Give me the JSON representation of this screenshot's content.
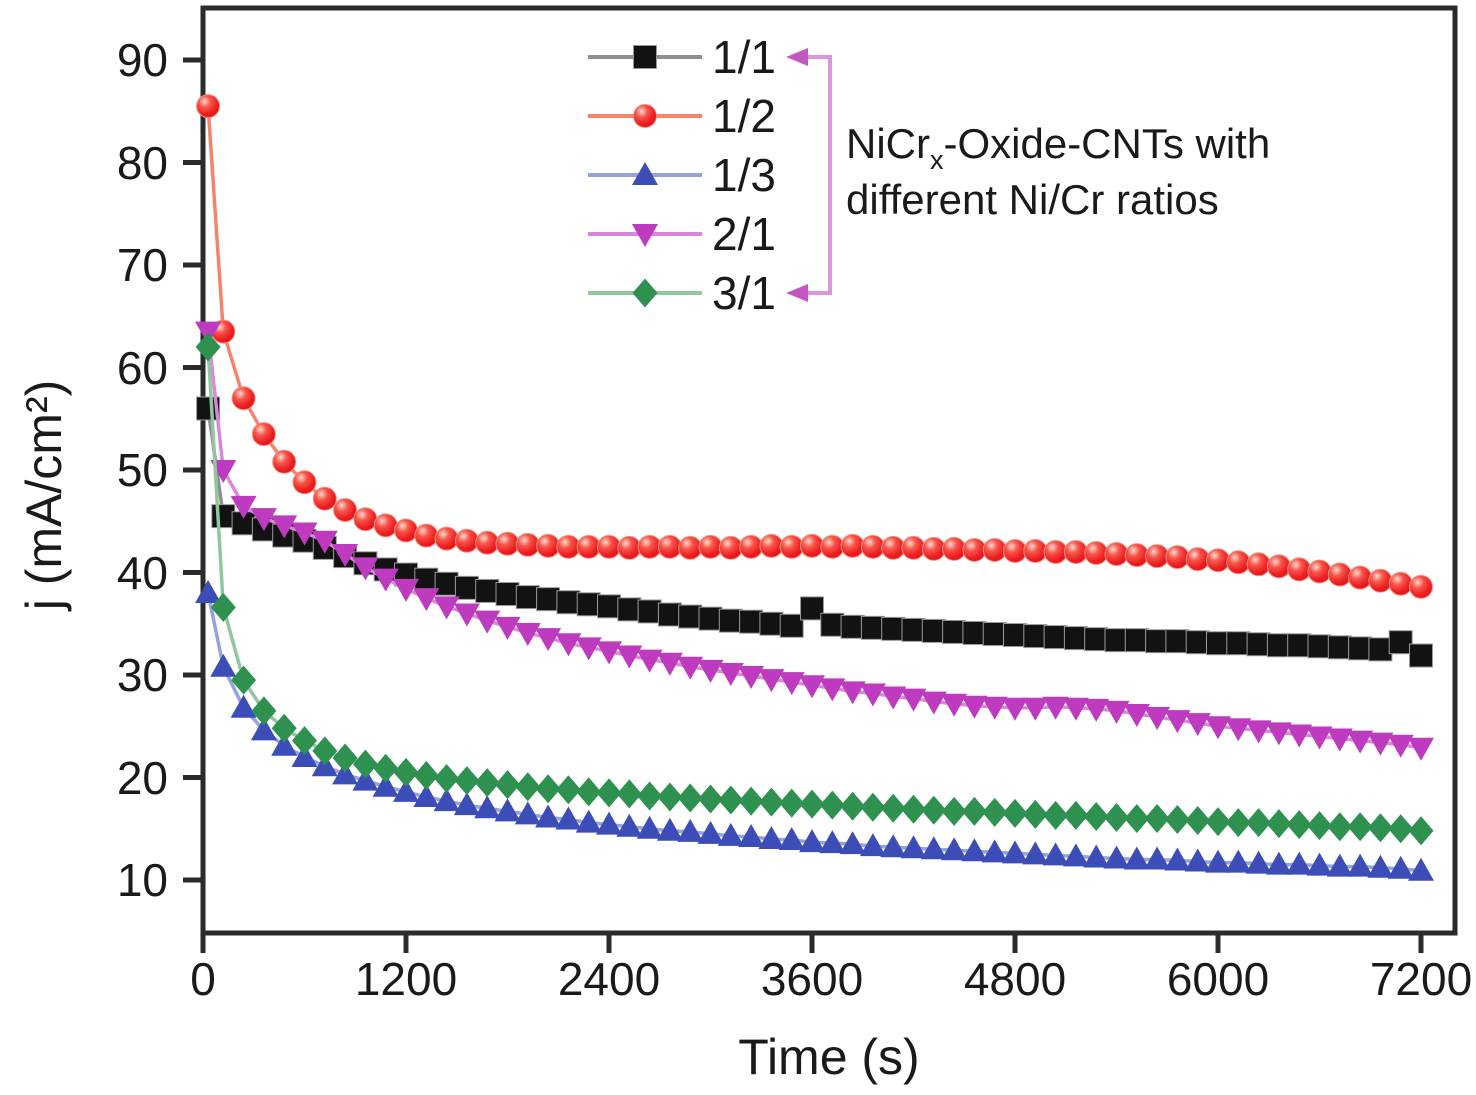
{
  "figure": {
    "background": "#ffffff"
  },
  "axes": {
    "x_label": "Time (s)",
    "y_label": "j (mA/cm²)",
    "x_ticks": [
      0,
      1200,
      2400,
      3600,
      4800,
      6000,
      7200
    ],
    "y_ticks": [
      90,
      80,
      70,
      60,
      50,
      40,
      30,
      20,
      10
    ],
    "frame_color": "#2b2b2b",
    "tick_color": "#2b2b2b",
    "label_color": "#1a1a1a"
  },
  "legend": {
    "items": [
      {
        "label": "1/1",
        "marker": "square",
        "marker_color": "#121212",
        "line_color": "#8f8f8f"
      },
      {
        "label": "1/2",
        "marker": "circle",
        "marker_color": "#ee1c1c",
        "line_color": "#f5846b"
      },
      {
        "label": "1/3",
        "marker": "triangle-up",
        "marker_color": "#3d4db7",
        "line_color": "#94a2dd"
      },
      {
        "label": "2/1",
        "marker": "triangle-down",
        "marker_color": "#be3abe",
        "line_color": "#da86da"
      },
      {
        "label": "3/1",
        "marker": "diamond",
        "marker_color": "#2e9150",
        "line_color": "#90c89e"
      }
    ],
    "bracket_color": "#dd96dd",
    "arrow_color": "#c455c4",
    "note_line1_prefix": "NiCr",
    "note_line1_sub": "x",
    "note_line1_suffix": "-Oxide-CNTs with",
    "note_line2": "different Ni/Cr ratios"
  },
  "chart_data": {
    "type": "line",
    "title": "",
    "xlabel": "Time (s)",
    "ylabel": "j (mA/cm²)",
    "xlim": [
      0,
      7430
    ],
    "ylim": [
      4.8,
      95.1
    ],
    "grid": false,
    "legend_position": "upper-center",
    "x": [
      30,
      120,
      240,
      360,
      480,
      600,
      720,
      840,
      960,
      1080,
      1200,
      1320,
      1440,
      1560,
      1680,
      1800,
      1920,
      2040,
      2160,
      2280,
      2400,
      2520,
      2640,
      2760,
      2880,
      3000,
      3120,
      3240,
      3360,
      3480,
      3600,
      3720,
      3840,
      3960,
      4080,
      4200,
      4320,
      4440,
      4560,
      4680,
      4800,
      4920,
      5040,
      5160,
      5280,
      5400,
      5520,
      5640,
      5760,
      5880,
      6000,
      6120,
      6240,
      6360,
      6480,
      6600,
      6720,
      6840,
      6960,
      7080,
      7200
    ],
    "series": [
      {
        "name": "1/1",
        "marker": "square",
        "color": "#121212",
        "line_color": "#8f8f8f",
        "values": [
          56.0,
          45.5,
          44.8,
          44.2,
          43.6,
          43.1,
          42.4,
          41.6,
          40.9,
          40.3,
          39.8,
          39.3,
          38.9,
          38.5,
          38.2,
          37.9,
          37.6,
          37.4,
          37.1,
          36.9,
          36.7,
          36.4,
          36.2,
          35.9,
          35.7,
          35.5,
          35.3,
          35.2,
          35.0,
          34.8,
          36.5,
          34.9,
          34.7,
          34.6,
          34.5,
          34.4,
          34.3,
          34.2,
          34.1,
          34.0,
          33.9,
          33.8,
          33.7,
          33.6,
          33.5,
          33.4,
          33.4,
          33.3,
          33.3,
          33.2,
          33.1,
          33.1,
          33.0,
          32.9,
          32.9,
          32.8,
          32.7,
          32.6,
          32.5,
          33.2,
          31.9
        ]
      },
      {
        "name": "1/2",
        "marker": "circle",
        "color": "#ee1c1c",
        "line_color": "#f5846b",
        "values": [
          85.5,
          63.5,
          57.0,
          53.5,
          50.8,
          48.8,
          47.2,
          46.1,
          45.2,
          44.6,
          44.1,
          43.6,
          43.3,
          43.1,
          42.9,
          42.8,
          42.7,
          42.6,
          42.5,
          42.5,
          42.5,
          42.4,
          42.5,
          42.5,
          42.4,
          42.5,
          42.4,
          42.5,
          42.6,
          42.5,
          42.6,
          42.5,
          42.6,
          42.5,
          42.4,
          42.4,
          42.3,
          42.3,
          42.2,
          42.2,
          42.1,
          42.1,
          42.0,
          42.0,
          41.9,
          41.8,
          41.7,
          41.6,
          41.5,
          41.3,
          41.2,
          41.0,
          40.8,
          40.6,
          40.3,
          40.1,
          39.8,
          39.5,
          39.2,
          38.9,
          38.6
        ]
      },
      {
        "name": "1/3",
        "marker": "triangle-up",
        "color": "#3d4db7",
        "line_color": "#94a2dd",
        "values": [
          38.0,
          30.8,
          26.8,
          24.6,
          23.1,
          22.0,
          21.1,
          20.3,
          19.7,
          19.1,
          18.6,
          18.1,
          17.7,
          17.3,
          17.0,
          16.7,
          16.4,
          16.1,
          15.9,
          15.6,
          15.4,
          15.2,
          15.0,
          14.8,
          14.7,
          14.5,
          14.3,
          14.2,
          14.0,
          13.9,
          13.7,
          13.6,
          13.5,
          13.3,
          13.2,
          13.1,
          13.0,
          12.9,
          12.8,
          12.7,
          12.6,
          12.5,
          12.4,
          12.3,
          12.2,
          12.1,
          12.0,
          12.0,
          11.9,
          11.8,
          11.7,
          11.7,
          11.6,
          11.5,
          11.5,
          11.4,
          11.3,
          11.3,
          11.2,
          11.1,
          10.9
        ]
      },
      {
        "name": "2/1",
        "marker": "triangle-down",
        "color": "#be3abe",
        "line_color": "#da86da",
        "values": [
          63.5,
          50.0,
          46.5,
          45.3,
          44.6,
          43.9,
          43.1,
          41.8,
          40.5,
          39.4,
          38.4,
          37.5,
          36.7,
          36.0,
          35.3,
          34.7,
          34.1,
          33.6,
          33.1,
          32.7,
          32.3,
          31.9,
          31.5,
          31.2,
          30.8,
          30.5,
          30.2,
          29.9,
          29.6,
          29.3,
          29.0,
          28.7,
          28.4,
          28.2,
          27.9,
          27.7,
          27.4,
          27.2,
          27.0,
          26.9,
          26.8,
          26.8,
          26.9,
          26.8,
          26.7,
          26.5,
          26.2,
          25.9,
          25.6,
          25.3,
          25.0,
          24.8,
          24.6,
          24.4,
          24.2,
          24.0,
          23.8,
          23.6,
          23.4,
          23.2,
          22.9
        ]
      },
      {
        "name": "3/1",
        "marker": "diamond",
        "color": "#2e9150",
        "line_color": "#90c89e",
        "values": [
          62.0,
          36.6,
          29.5,
          26.5,
          24.8,
          23.6,
          22.6,
          21.9,
          21.3,
          20.9,
          20.5,
          20.2,
          19.9,
          19.7,
          19.5,
          19.3,
          19.1,
          18.9,
          18.8,
          18.6,
          18.5,
          18.4,
          18.2,
          18.1,
          18.0,
          17.9,
          17.8,
          17.7,
          17.6,
          17.5,
          17.4,
          17.3,
          17.2,
          17.1,
          17.0,
          16.9,
          16.8,
          16.7,
          16.7,
          16.6,
          16.5,
          16.4,
          16.3,
          16.3,
          16.2,
          16.1,
          16.0,
          16.0,
          15.9,
          15.8,
          15.7,
          15.6,
          15.6,
          15.5,
          15.4,
          15.3,
          15.2,
          15.2,
          15.1,
          15.0,
          14.8
        ]
      }
    ]
  }
}
